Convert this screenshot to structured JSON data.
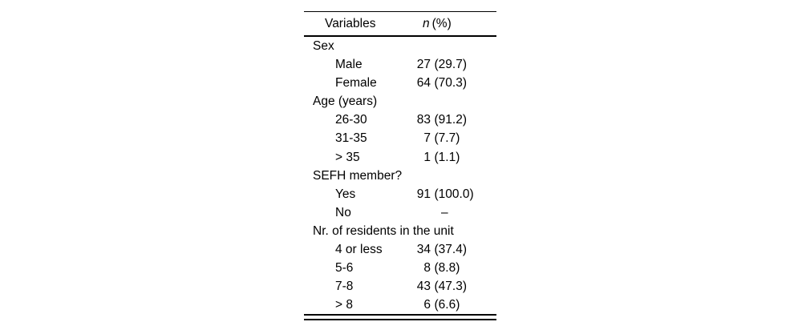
{
  "table": {
    "header": {
      "variables": "Variables",
      "n_label": "n",
      "pct_label": "(%)"
    },
    "rows": [
      {
        "label": "Sex",
        "type": "group"
      },
      {
        "label": "Male",
        "n": "27",
        "pct": "(29.7)"
      },
      {
        "label": "Female",
        "n": "64",
        "pct": "(70.3)"
      },
      {
        "label": "Age (years)",
        "type": "group"
      },
      {
        "label": "26-30",
        "n": "83",
        "pct": "(91.2)"
      },
      {
        "label": "31-35",
        "n": "7",
        "pct": "(7.7)"
      },
      {
        "label": "> 35",
        "n": "1",
        "pct": "(1.1)"
      },
      {
        "label": "SEFH member?",
        "type": "group"
      },
      {
        "label": "Yes",
        "n": "91",
        "pct": "(100.0)"
      },
      {
        "label": "No",
        "dash": "–"
      },
      {
        "label": "Nr. of residents in the unit",
        "type": "group"
      },
      {
        "label": "4 or less",
        "n": "34",
        "pct": "(37.4)"
      },
      {
        "label": "5-6",
        "n": "8",
        "pct": "(8.8)"
      },
      {
        "label": "7-8",
        "n": "43",
        "pct": "(47.3)"
      },
      {
        "label": "> 8",
        "n": "6",
        "pct": "(6.6)"
      }
    ]
  }
}
